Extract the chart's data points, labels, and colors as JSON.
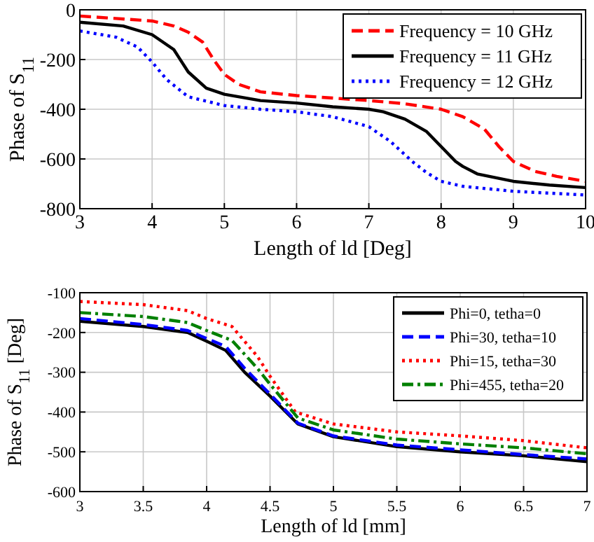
{
  "chart_data": [
    {
      "type": "line",
      "xlabel": "Length of ld [Deg]",
      "ylabel": "Phase of S$_{11}$",
      "xlim": [
        3,
        10
      ],
      "xticks": [
        3,
        4,
        5,
        6,
        7,
        8,
        9,
        10
      ],
      "ylim": [
        -800,
        0
      ],
      "yticks": [
        -800,
        -600,
        -400,
        -200,
        0
      ],
      "grid": true,
      "legend": "top right",
      "series": [
        {
          "name": "Frequency = 10 GHz",
          "color": "#ff0000",
          "line_style": "dashed",
          "x": [
            3,
            3.5,
            4,
            4.3,
            4.5,
            4.7,
            4.85,
            5,
            5.2,
            5.5,
            6,
            6.5,
            7,
            7.5,
            8,
            8.3,
            8.6,
            8.8,
            9,
            9.3,
            9.6,
            10
          ],
          "values": [
            -25,
            -35,
            -45,
            -65,
            -90,
            -130,
            -200,
            -260,
            -300,
            -330,
            -345,
            -355,
            -365,
            -378,
            -400,
            -430,
            -480,
            -550,
            -610,
            -650,
            -670,
            -690
          ]
        },
        {
          "name": "Frequency = 11 GHz",
          "color": "#000000",
          "line_style": "solid",
          "x": [
            3,
            3.6,
            4,
            4.3,
            4.5,
            4.75,
            5,
            5.5,
            6,
            6.5,
            7,
            7.2,
            7.5,
            7.8,
            8,
            8.2,
            8.3,
            8.5,
            9,
            9.5,
            10
          ],
          "values": [
            -50,
            -65,
            -100,
            -160,
            -250,
            -315,
            -340,
            -365,
            -375,
            -390,
            -400,
            -410,
            -440,
            -490,
            -550,
            -610,
            -630,
            -660,
            -690,
            -705,
            -715
          ]
        },
        {
          "name": "Frequency = 12 GHz",
          "color": "#0000ff",
          "line_style": "dotted",
          "x": [
            3,
            3.5,
            3.8,
            4,
            4.2,
            4.5,
            5,
            5.5,
            6,
            6.5,
            7,
            7.3,
            7.6,
            7.8,
            8,
            8.3,
            9,
            10
          ],
          "values": [
            -85,
            -110,
            -150,
            -210,
            -280,
            -350,
            -385,
            -400,
            -410,
            -430,
            -470,
            -530,
            -610,
            -655,
            -690,
            -710,
            -730,
            -745
          ]
        }
      ]
    },
    {
      "type": "line",
      "xlabel": "Length of ld [mm]",
      "ylabel": "Phase of S$_{11}$ [Deg]",
      "xlim": [
        3,
        7
      ],
      "xticks": [
        3,
        3.5,
        4,
        4.5,
        5,
        5.5,
        6,
        6.5,
        7
      ],
      "ylim": [
        -600,
        -100
      ],
      "yticks": [
        -600,
        -500,
        -400,
        -300,
        -200,
        -100
      ],
      "grid": true,
      "legend": "top right",
      "series": [
        {
          "name": "Phi=0, tetha=0",
          "color": "#000000",
          "line_style": "solid",
          "x": [
            3,
            3.5,
            3.85,
            4,
            4.15,
            4.3,
            4.5,
            4.72,
            5,
            5.5,
            6,
            6.5,
            7
          ],
          "values": [
            -172,
            -185,
            -200,
            -222,
            -245,
            -300,
            -360,
            -430,
            -462,
            -487,
            -500,
            -510,
            -525
          ]
        },
        {
          "name": "Phi=30, tetha=10",
          "color": "#0000ff",
          "line_style": "dashed",
          "x": [
            3,
            3.5,
            3.85,
            4,
            4.15,
            4.3,
            4.5,
            4.72,
            5,
            5.5,
            6,
            6.5,
            7
          ],
          "values": [
            -165,
            -180,
            -195,
            -215,
            -235,
            -290,
            -355,
            -428,
            -460,
            -483,
            -495,
            -507,
            -518
          ]
        },
        {
          "name": "Phi=15, tetha=30",
          "color": "#ff0000",
          "line_style": "dotted",
          "x": [
            3,
            3.5,
            3.85,
            4,
            4.2,
            4.4,
            4.5,
            4.7,
            5,
            5.5,
            6,
            6.5,
            7
          ],
          "values": [
            -122,
            -130,
            -145,
            -165,
            -185,
            -260,
            -310,
            -400,
            -430,
            -450,
            -460,
            -472,
            -490
          ]
        },
        {
          "name": "Phi=455, tetha=20",
          "color": "#008000",
          "line_style": "dashdot",
          "x": [
            3,
            3.5,
            3.85,
            4,
            4.2,
            4.4,
            4.5,
            4.72,
            5,
            5.5,
            6,
            6.5,
            7
          ],
          "values": [
            -150,
            -160,
            -175,
            -195,
            -220,
            -290,
            -330,
            -415,
            -445,
            -468,
            -480,
            -490,
            -505
          ]
        }
      ]
    }
  ]
}
